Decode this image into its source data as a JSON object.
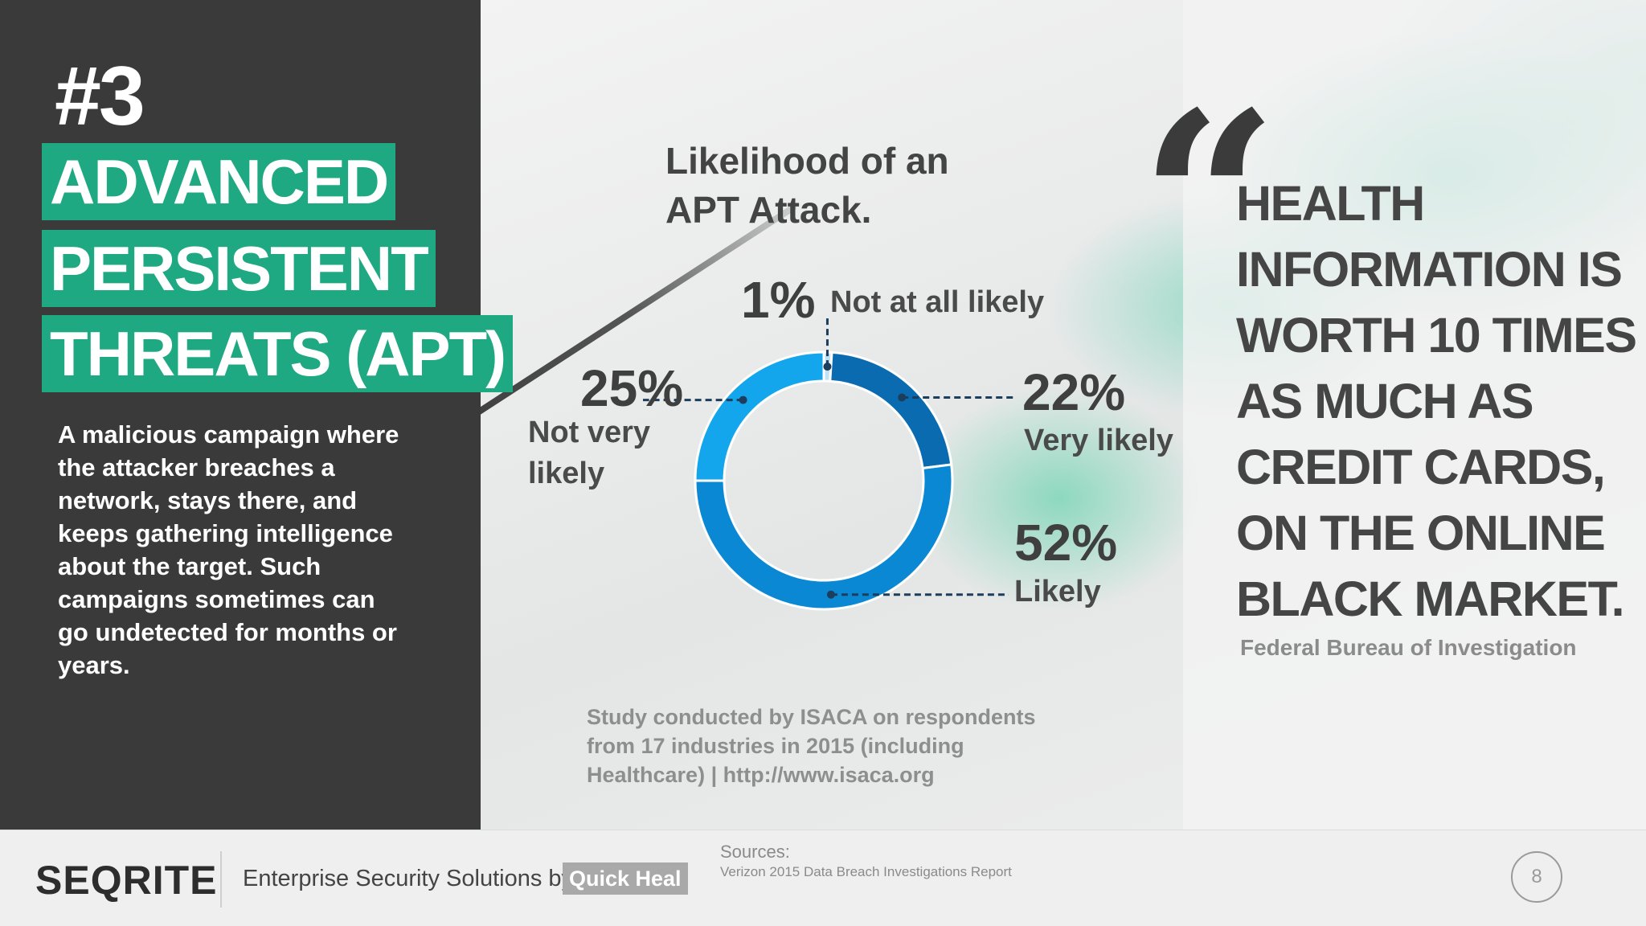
{
  "left_panel": {
    "rank": "#3",
    "title_lines": [
      "ADVANCED",
      "PERSISTENT",
      "THREATS (APT)"
    ],
    "description": "A malicious campaign where the attacker breaches a network, stays there, and keeps gathering intelligence about the target. Such campaigns sometimes can go undetected for months or years."
  },
  "chart_data": {
    "type": "pie",
    "title": "Likelihood of an APT Attack.",
    "categories": [
      "Not at all likely",
      "Very likely",
      "Likely",
      "Not very likely"
    ],
    "values": [
      1,
      22,
      52,
      25
    ],
    "value_labels": [
      "1%",
      "22%",
      "52%",
      "25%"
    ],
    "category_labels": [
      "Not at all likely",
      "Very likely",
      "Likely",
      "Not very\nlikely"
    ],
    "colors": [
      "#bfe3f5",
      "#0a6bb0",
      "#0b88d4",
      "#14a6ec"
    ],
    "style": "donut"
  },
  "study_note": "Study conducted by ISACA on respondents from 17 industries in 2015 (including Healthcare) | http://www.isaca.org",
  "quote": {
    "mark": "“",
    "text": "HEALTH INFORMATION IS WORTH 10 TIMES AS MUCH AS CREDIT CARDS, ON THE ONLINE BLACK MARKET.",
    "source": "Federal Bureau of Investigation"
  },
  "footer": {
    "logo": "SEQRITE",
    "tagline": "Enterprise Security Solutions by",
    "brand": "Quick Heal",
    "sources_label": "Sources:",
    "sources_text": "Verizon 2015 Data Breach Investigations Report",
    "page_number": "8"
  }
}
